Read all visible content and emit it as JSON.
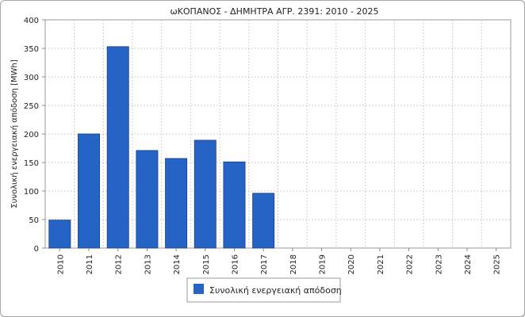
{
  "chart_data": {
    "type": "bar",
    "title": "ωΚΟΠΑΝΟΣ - ΔΗΜΗΤΡΑ ΑΓΡ. 2391: 2010 - 2025",
    "xlabel": "",
    "ylabel": "Συνολική ενεργειακή απόδοση  [MWh]",
    "ylim": [
      0,
      400
    ],
    "yticks": [
      "0",
      "50",
      "100",
      "150",
      "200",
      "250",
      "300",
      "350",
      "400"
    ],
    "categories": [
      "2010",
      "2011",
      "2012",
      "2013",
      "2014",
      "2015",
      "2016",
      "2017",
      "2018",
      "2019",
      "2020",
      "2021",
      "2022",
      "2023",
      "2024",
      "2025"
    ],
    "series": [
      {
        "name": "Συνολική ενεργειακή απόδοση",
        "color": "#2563c4",
        "values": [
          49,
          200,
          353,
          171,
          157,
          189,
          151,
          96,
          0,
          0,
          0,
          0,
          0,
          0,
          0,
          0
        ]
      }
    ],
    "grid": true,
    "legend": "bottom-center"
  }
}
